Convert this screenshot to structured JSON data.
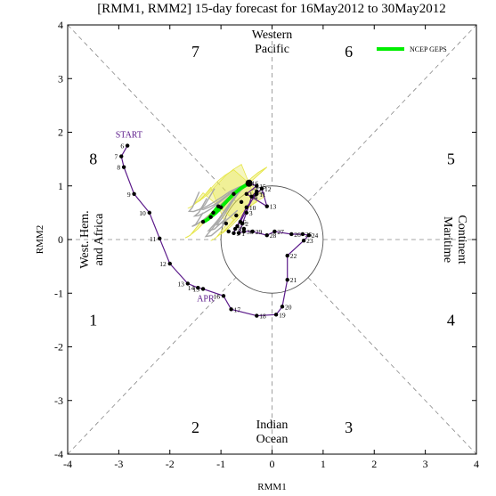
{
  "chart_data": {
    "type": "scatter",
    "title": "[RMM1, RMM2] 15-day forecast for 16May2012 to 30May2012",
    "xlabel": "RMM1",
    "ylabel": "RMM2",
    "xlim": [
      -4,
      4
    ],
    "ylim": [
      -4,
      4
    ],
    "x_ticks": [
      "-4",
      "-3",
      "-2",
      "-1",
      "0",
      "1",
      "2",
      "3",
      "4"
    ],
    "y_ticks": [
      "-4",
      "-3",
      "-2",
      "-1",
      "0",
      "1",
      "2",
      "3",
      "4"
    ],
    "grid": false,
    "legend": {
      "position": "top-right",
      "entries": [
        "NCEP GEPS"
      ]
    },
    "colors": {
      "observed": "#5b1a8a",
      "ensemble_mean": "#00ee00",
      "ensemble_members": "#a8a8a8",
      "spread": "#e6e64a",
      "guides": "#888888"
    },
    "phase_numbers": [
      {
        "label": "1",
        "x": -3.5,
        "y": -1.5
      },
      {
        "label": "2",
        "x": -1.5,
        "y": -3.5
      },
      {
        "label": "3",
        "x": 1.5,
        "y": -3.5
      },
      {
        "label": "4",
        "x": 3.5,
        "y": -1.5
      },
      {
        "label": "5",
        "x": 3.5,
        "y": 1.5
      },
      {
        "label": "6",
        "x": 1.5,
        "y": 3.5
      },
      {
        "label": "7",
        "x": -1.5,
        "y": 3.5
      },
      {
        "label": "8",
        "x": -3.5,
        "y": 1.5
      }
    ],
    "region_labels": {
      "top": [
        "Western",
        "Pacific"
      ],
      "bottom": [
        "Indian",
        "Ocean"
      ],
      "left": [
        "West. Hem.",
        "and Africa"
      ],
      "right": [
        "Maritime",
        "Continent"
      ]
    },
    "annotations": [
      {
        "text": "START",
        "x": -2.8,
        "y": 1.9
      },
      {
        "text": "APR",
        "x": -1.3,
        "y": -1.15
      }
    ],
    "observed": [
      {
        "label": "6",
        "x": -2.83,
        "y": 1.75
      },
      {
        "label": "7",
        "x": -2.95,
        "y": 1.55
      },
      {
        "label": "8",
        "x": -2.9,
        "y": 1.35
      },
      {
        "label": "9",
        "x": -2.7,
        "y": 0.85
      },
      {
        "label": "10",
        "x": -2.4,
        "y": 0.5
      },
      {
        "label": "11",
        "x": -2.2,
        "y": 0.02
      },
      {
        "label": "12",
        "x": -2.0,
        "y": -0.45
      },
      {
        "label": "13",
        "x": -1.65,
        "y": -0.82
      },
      {
        "label": "14",
        "x": -1.45,
        "y": -0.9
      },
      {
        "label": "15",
        "x": -1.35,
        "y": -0.92
      },
      {
        "label": "16",
        "x": -0.95,
        "y": -1.05
      },
      {
        "label": "17",
        "x": -0.8,
        "y": -1.3
      },
      {
        "label": "18",
        "x": -0.3,
        "y": -1.42
      },
      {
        "label": "19",
        "x": 0.08,
        "y": -1.4
      },
      {
        "label": "20",
        "x": 0.2,
        "y": -1.25
      },
      {
        "label": "21",
        "x": 0.3,
        "y": -0.75
      },
      {
        "label": "22",
        "x": 0.3,
        "y": -0.3
      },
      {
        "label": "23",
        "x": 0.62,
        "y": -0.02
      },
      {
        "label": "24",
        "x": 0.72,
        "y": 0.08
      },
      {
        "label": "25",
        "x": 0.6,
        "y": 0.1
      },
      {
        "label": "26",
        "x": 0.38,
        "y": 0.1
      },
      {
        "label": "27",
        "x": 0.05,
        "y": 0.15
      },
      {
        "label": "28",
        "x": -0.1,
        "y": 0.08
      },
      {
        "label": "29",
        "x": -0.38,
        "y": 0.15
      },
      {
        "label": "30",
        "x": -0.55,
        "y": 0.15
      },
      {
        "label": "1",
        "x": -0.65,
        "y": 0.12
      },
      {
        "label": "2",
        "x": -0.58,
        "y": 0.3
      },
      {
        "label": "3",
        "x": -0.5,
        "y": 0.5
      },
      {
        "label": "4",
        "x": -0.4,
        "y": 0.8
      },
      {
        "label": "5",
        "x": -0.3,
        "y": 0.9
      },
      {
        "label": "6",
        "x": -0.62,
        "y": 0.33
      },
      {
        "label": "7",
        "x": -0.68,
        "y": 0.25
      },
      {
        "label": "8",
        "x": -0.72,
        "y": 0.2
      },
      {
        "label": "9",
        "x": -0.75,
        "y": 0.12
      },
      {
        "label": "10",
        "x": -0.5,
        "y": 0.6
      },
      {
        "label": "11",
        "x": -0.3,
        "y": 0.85
      },
      {
        "label": "12",
        "x": -0.2,
        "y": 0.95
      },
      {
        "label": "13",
        "x": -0.1,
        "y": 0.62
      },
      {
        "label": "14",
        "x": -0.5,
        "y": 0.85
      },
      {
        "label": "15",
        "x": -0.3,
        "y": 1.0
      },
      {
        "label": "16",
        "x": -0.45,
        "y": 1.05
      }
    ],
    "ensemble_mean": [
      {
        "x": -0.45,
        "y": 1.05
      },
      {
        "x": -0.62,
        "y": 0.95
      },
      {
        "x": -0.75,
        "y": 0.85
      },
      {
        "x": -0.88,
        "y": 0.72
      },
      {
        "x": -1.0,
        "y": 0.6
      },
      {
        "x": -1.1,
        "y": 0.5
      },
      {
        "x": -1.2,
        "y": 0.42
      },
      {
        "x": -1.3,
        "y": 0.35
      },
      {
        "x": -1.35,
        "y": 0.33
      },
      {
        "x": -1.25,
        "y": 0.38
      },
      {
        "x": -1.15,
        "y": 0.5
      },
      {
        "x": -1.05,
        "y": 0.62
      }
    ],
    "ensemble_points": [
      {
        "x": -0.45,
        "y": 1.05
      },
      {
        "x": -0.75,
        "y": 0.85
      },
      {
        "x": -1.0,
        "y": 0.6
      },
      {
        "x": -1.2,
        "y": 0.42
      },
      {
        "x": -1.35,
        "y": 0.33
      },
      {
        "x": -1.15,
        "y": 0.5
      },
      {
        "x": -1.05,
        "y": 0.62
      },
      {
        "x": -0.9,
        "y": 0.3
      },
      {
        "x": -0.7,
        "y": 0.45
      },
      {
        "x": -0.6,
        "y": 0.7
      },
      {
        "x": -0.85,
        "y": 0.15
      },
      {
        "x": -0.55,
        "y": 0.2
      }
    ]
  }
}
